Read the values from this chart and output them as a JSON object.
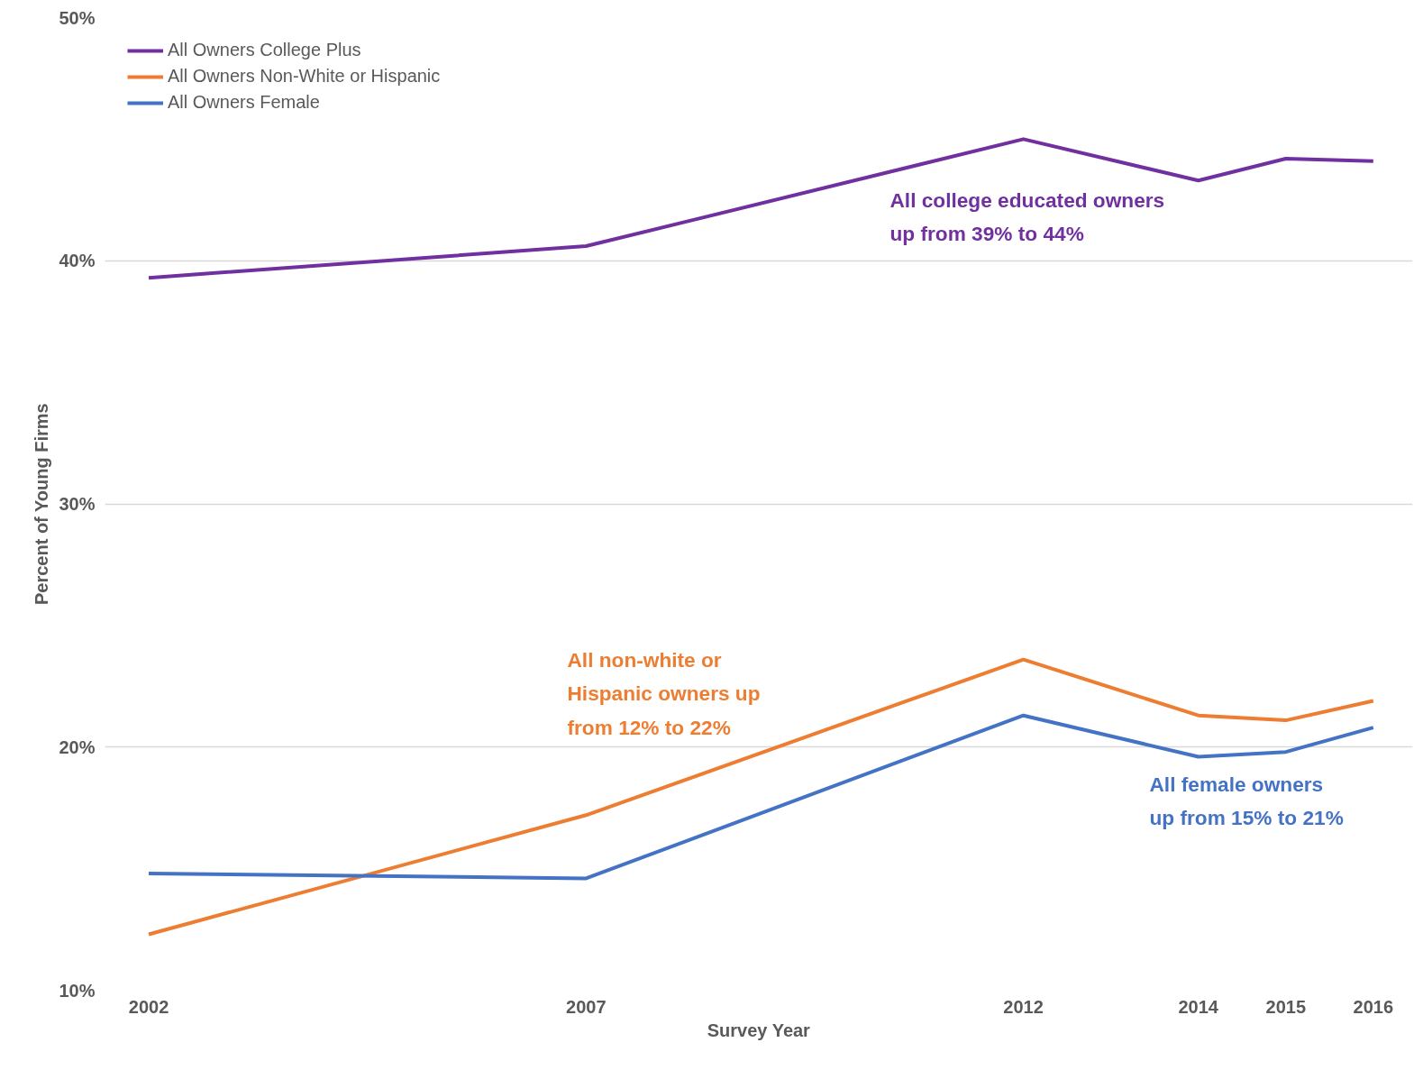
{
  "chart_data": {
    "type": "line",
    "xlabel": "Survey Year",
    "ylabel": "Percent of Young Firms",
    "x": [
      2002,
      2007,
      2012,
      2014,
      2015,
      2016
    ],
    "series": [
      {
        "name": "All Owners College Plus",
        "color": "#7030a0",
        "values": [
          39.3,
          40.6,
          45.0,
          43.3,
          44.2,
          44.1
        ]
      },
      {
        "name": "All Owners Non-White or Hispanic",
        "color": "#ed7d31",
        "values": [
          12.3,
          17.2,
          23.6,
          21.3,
          21.1,
          21.9
        ]
      },
      {
        "name": "All Owners Female",
        "color": "#4472c4",
        "values": [
          14.8,
          14.6,
          21.3,
          19.6,
          19.8,
          20.8
        ]
      }
    ],
    "xlim": [
      2001.5,
      2016.45
    ],
    "xticks": [
      2002,
      2007,
      2012,
      2014,
      2015,
      2016
    ],
    "ylim": [
      10,
      50
    ],
    "yticks": [
      {
        "value": 10,
        "label": "10%"
      },
      {
        "value": 20,
        "label": "20%"
      },
      {
        "value": 30,
        "label": "30%"
      },
      {
        "value": 40,
        "label": "40%"
      },
      {
        "value": 50,
        "label": "50%"
      }
    ],
    "grid": "y",
    "legend": "top left",
    "marker": "none",
    "line_style": "solid",
    "annotations": [
      "All college educated owners\nup from 39% to 44%",
      "All non-white or\nHispanic owners up\nfrom 12% to 22%",
      "All female owners\nup from 15% to 21%"
    ]
  }
}
